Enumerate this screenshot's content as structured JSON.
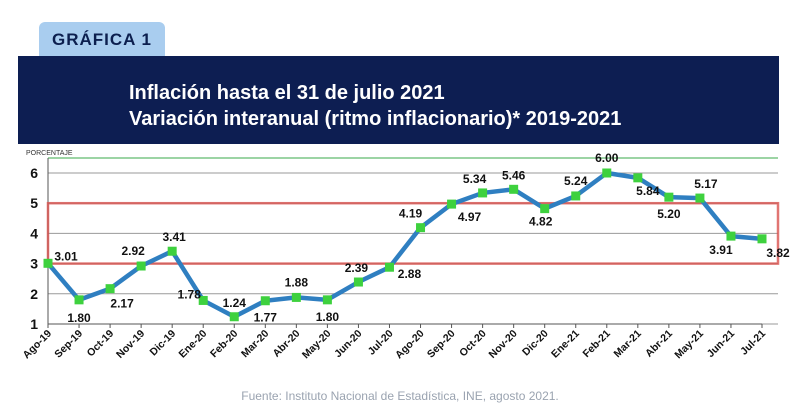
{
  "badge": "GRÁFICA  1",
  "header": {
    "line1": "Inflación hasta el 31 de julio 2021",
    "line2": "Variación interanual (ritmo inflacionario)* 2019-2021"
  },
  "source": "Fuente: Instituto Nacional de Estadística, INE, agosto 2021.",
  "chart_data": {
    "type": "line",
    "ylabel": "PORCENTAJE",
    "ylim": [
      1,
      6.5
    ],
    "yticks": [
      1,
      2,
      3,
      4,
      5,
      6
    ],
    "grid": true,
    "band": [
      3,
      5
    ],
    "colors": {
      "line": "#2f7fc1",
      "marker": "#3ed13e",
      "band": "#d9534f"
    },
    "categories": [
      "Ago-19",
      "Sep-19",
      "Oct-19",
      "Nov-19",
      "Dic-19",
      "Ene-20",
      "Feb-20",
      "Mar-20",
      "Abr-20",
      "May-20",
      "Jun-20",
      "Jul-20",
      "Ago-20",
      "Sep-20",
      "Oct-20",
      "Nov-20",
      "Dic-20",
      "Ene-21",
      "Feb-21",
      "Mar-21",
      "Abr-21",
      "May-21",
      "Jun-21",
      "Jul-21"
    ],
    "values": [
      3.01,
      1.8,
      2.17,
      2.92,
      3.41,
      1.78,
      1.24,
      1.77,
      1.88,
      1.8,
      2.39,
      2.88,
      4.19,
      4.97,
      5.34,
      5.46,
      4.82,
      5.24,
      6.0,
      5.84,
      5.2,
      5.17,
      3.91,
      3.82
    ],
    "labels": [
      "3.01",
      "1.80",
      "2.17",
      "2.92",
      "3.41",
      "1.78",
      "1.24",
      "1.77",
      "1.88",
      "1.80",
      "2.39",
      "2.88",
      "4.19",
      "4.97",
      "5.34",
      "5.46",
      "4.82",
      "5.24",
      "6.00",
      "5.84",
      "5.20",
      "5.17",
      "3.91",
      "3.82"
    ]
  }
}
